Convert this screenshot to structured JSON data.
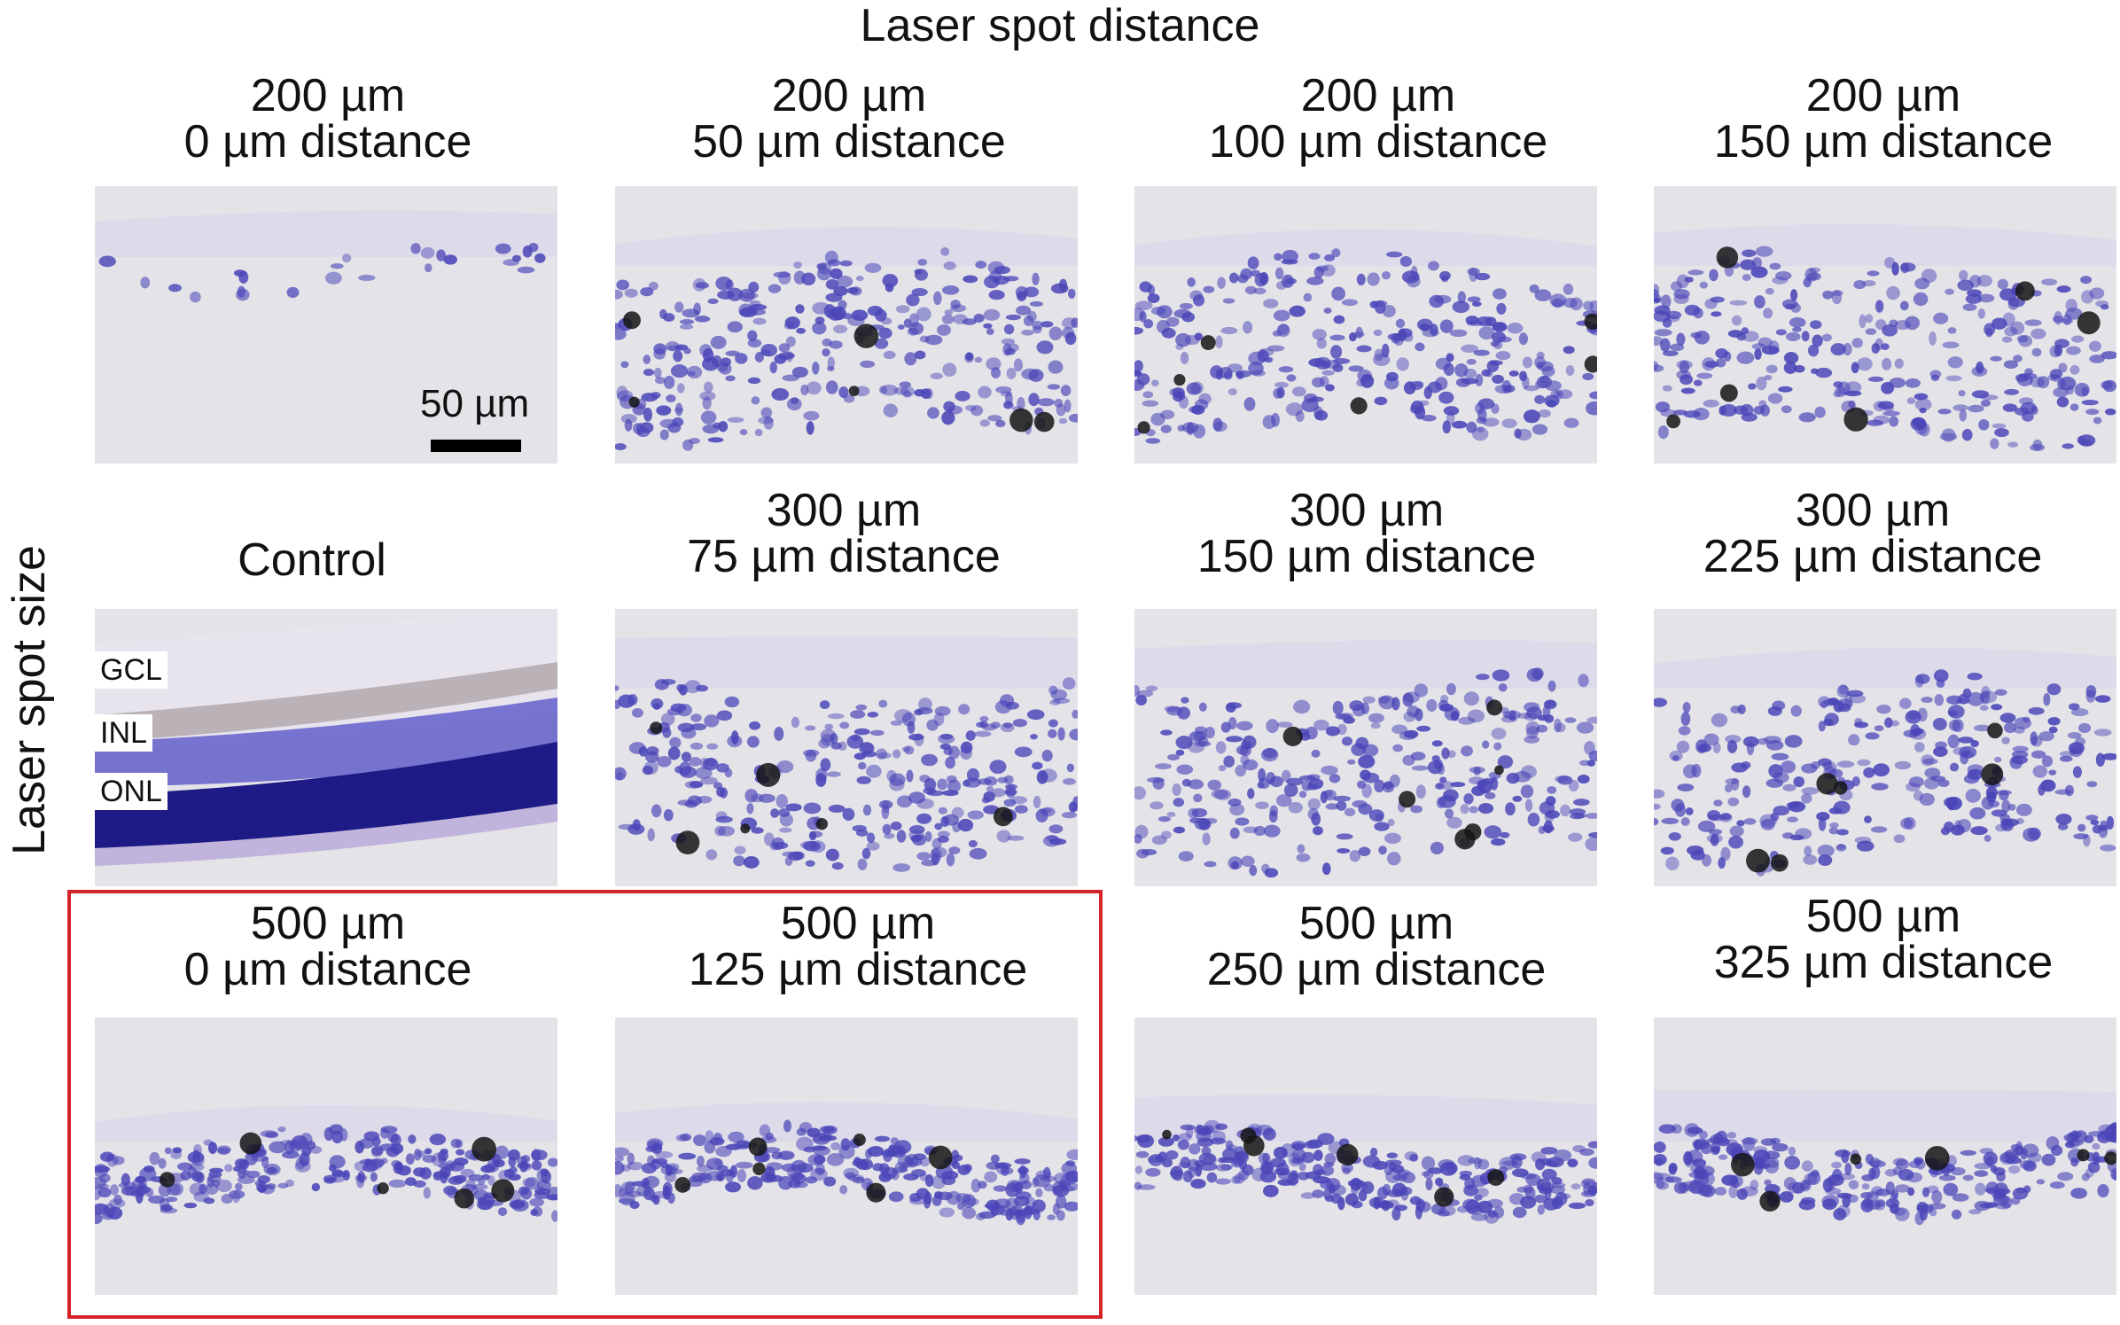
{
  "figure": {
    "column_axis_label": "Laser spot distance",
    "row_axis_label": "Laser spot size",
    "scale_bar_label": "50 µm",
    "layer_labels": [
      "GCL",
      "INL",
      "ONL"
    ],
    "highlight_color": "#d4232a",
    "stain_color": "#4b45b8",
    "panels": [
      {
        "row": 1,
        "col": 1,
        "size": "200 µm",
        "distance": "0 µm distance",
        "tissue": "thin"
      },
      {
        "row": 1,
        "col": 2,
        "size": "200 µm",
        "distance": "50 µm distance",
        "tissue": "damaged"
      },
      {
        "row": 1,
        "col": 3,
        "size": "200 µm",
        "distance": "100 µm distance",
        "tissue": "damaged"
      },
      {
        "row": 1,
        "col": 4,
        "size": "200 µm",
        "distance": "150 µm distance",
        "tissue": "damaged"
      },
      {
        "row": 2,
        "col": 1,
        "size": "Control",
        "distance": "",
        "tissue": "control"
      },
      {
        "row": 2,
        "col": 2,
        "size": "300 µm",
        "distance": "75 µm distance",
        "tissue": "damaged"
      },
      {
        "row": 2,
        "col": 3,
        "size": "300 µm",
        "distance": "150 µm distance",
        "tissue": "damaged"
      },
      {
        "row": 2,
        "col": 4,
        "size": "300 µm",
        "distance": "225 µm distance",
        "tissue": "damaged"
      },
      {
        "row": 3,
        "col": 1,
        "size": "500 µm",
        "distance": "0 µm distance",
        "tissue": "band",
        "highlighted": true
      },
      {
        "row": 3,
        "col": 2,
        "size": "500 µm",
        "distance": "125 µm distance",
        "tissue": "band",
        "highlighted": true
      },
      {
        "row": 3,
        "col": 3,
        "size": "500 µm",
        "distance": "250 µm distance",
        "tissue": "band"
      },
      {
        "row": 3,
        "col": 4,
        "size": "500 µm",
        "distance": "325 µm distance",
        "tissue": "band"
      }
    ]
  }
}
